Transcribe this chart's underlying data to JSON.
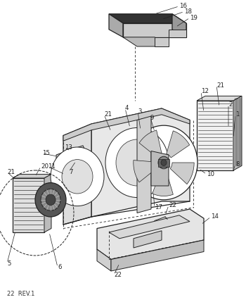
{
  "bg_color": "#ffffff",
  "line_color": "#222222",
  "footer_text": "22  REV.1",
  "fig_width": 3.5,
  "fig_height": 4.29,
  "dpi": 100
}
